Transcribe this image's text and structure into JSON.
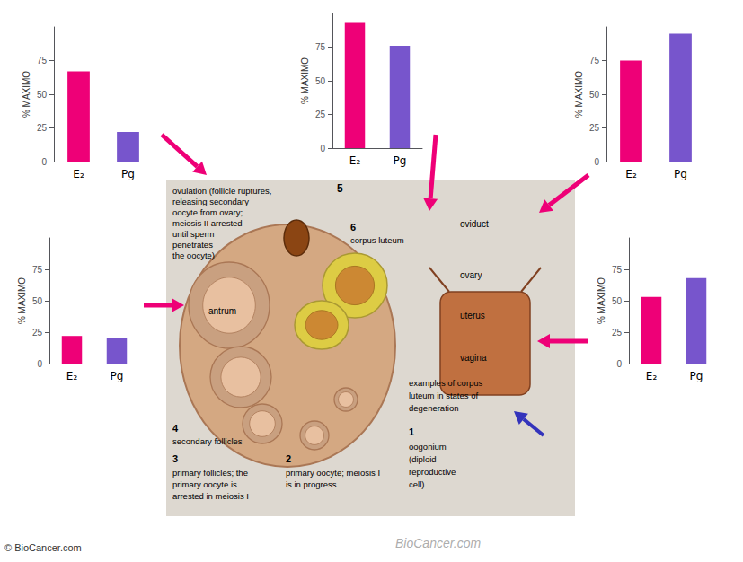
{
  "chart_data": [
    {
      "type": "bar",
      "categories": [
        "E₂",
        "Pg"
      ],
      "values": [
        67,
        22
      ],
      "colors": [
        "#EE0077",
        "#7755CC"
      ],
      "ylabel": "% MAXIMO",
      "ylim": [
        0,
        100
      ],
      "yticks": [
        0,
        25,
        50,
        75
      ],
      "grid": false
    },
    {
      "type": "bar",
      "categories": [
        "E₂",
        "Pg"
      ],
      "values": [
        93,
        76
      ],
      "colors": [
        "#EE0077",
        "#7755CC"
      ],
      "ylabel": "% MAXIMO",
      "ylim": [
        0,
        100
      ],
      "yticks": [
        0,
        25,
        50,
        75
      ],
      "grid": false
    },
    {
      "type": "bar",
      "categories": [
        "E₂",
        "Pg"
      ],
      "values": [
        75,
        95
      ],
      "colors": [
        "#EE0077",
        "#7755CC"
      ],
      "ylabel": "% MAXIMO",
      "ylim": [
        0,
        100
      ],
      "yticks": [
        0,
        25,
        50,
        75
      ],
      "grid": false
    },
    {
      "type": "bar",
      "categories": [
        "E₂",
        "Pg"
      ],
      "values": [
        22,
        20
      ],
      "colors": [
        "#EE0077",
        "#7755CC"
      ],
      "ylabel": "% MAXIMO",
      "ylim": [
        0,
        100
      ],
      "yticks": [
        0,
        25,
        50,
        75
      ],
      "grid": false
    },
    {
      "type": "bar",
      "categories": [
        "E₂",
        "Pg"
      ],
      "values": [
        53,
        68
      ],
      "colors": [
        "#EE0077",
        "#7755CC"
      ],
      "ylabel": "% MAXIMO",
      "ylim": [
        0,
        100
      ],
      "yticks": [
        0,
        25,
        50,
        75
      ],
      "grid": false
    }
  ],
  "annotations": [
    "antrum",
    "5",
    "oviduct",
    "ovary",
    "uterus",
    "vagina",
    "6",
    "corpus luteum",
    "examples of corpus",
    "luteum in states of",
    "degeneration",
    "1",
    "oogonium",
    "(diploid",
    "reproductive",
    "cell)",
    "4",
    "secondary follicles",
    "3",
    "primary follicles; the",
    "primary oocyte is\narrested in meiosis I",
    "2",
    "primary oocyte; meiosis I\nis in progress",
    "ovulation (follicle ruptures,",
    "releasing secondary",
    "oocyte from ovary;",
    "meiosis II arrested",
    "until sperm",
    "penetrates",
    "the oocyte)",
    "© BioCancer.com",
    "BioCancer.com"
  ]
}
